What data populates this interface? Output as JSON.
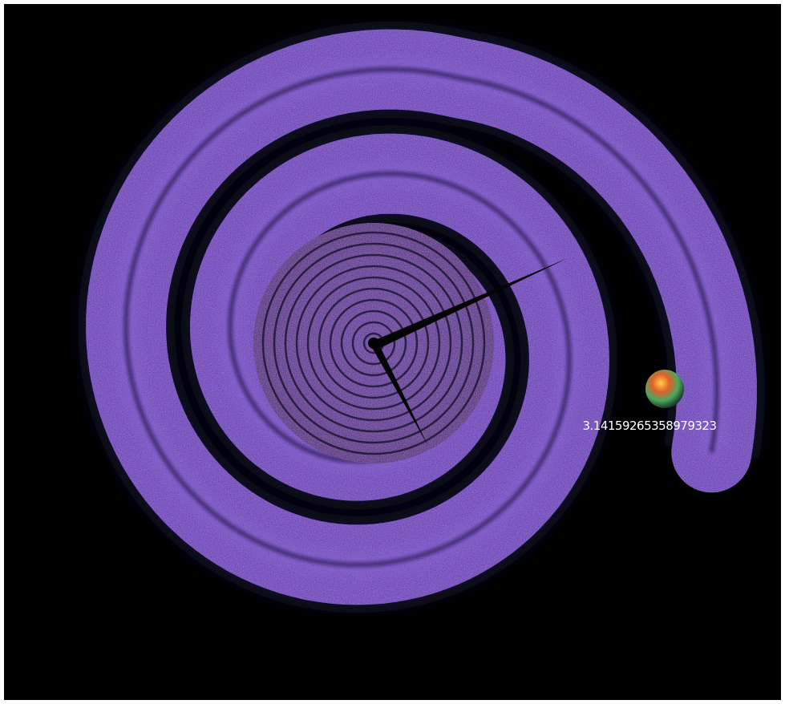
{
  "readout": "3.14159265358979323"
}
